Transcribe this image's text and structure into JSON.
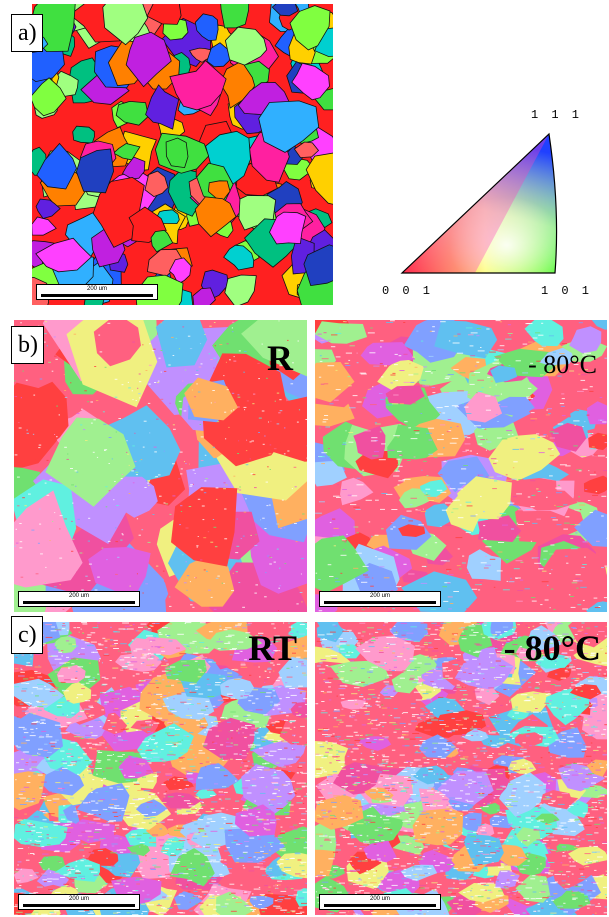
{
  "panels": {
    "a": {
      "label": "a)",
      "scale_bar": "200 um"
    },
    "b": {
      "label": "b)",
      "left": {
        "condition": "R",
        "scale_bar": "200 um"
      },
      "right": {
        "condition": "- 80°C",
        "scale_bar": "200 um"
      }
    },
    "c": {
      "label": "c)",
      "left": {
        "condition": "RT",
        "scale_bar": "200 um"
      },
      "right": {
        "condition": "- 80°C",
        "scale_bar": "200 um"
      }
    }
  },
  "ipf_key": {
    "corner_111": "1 1 1",
    "corner_001": "0 0 1",
    "corner_101": "1 0 1"
  }
}
